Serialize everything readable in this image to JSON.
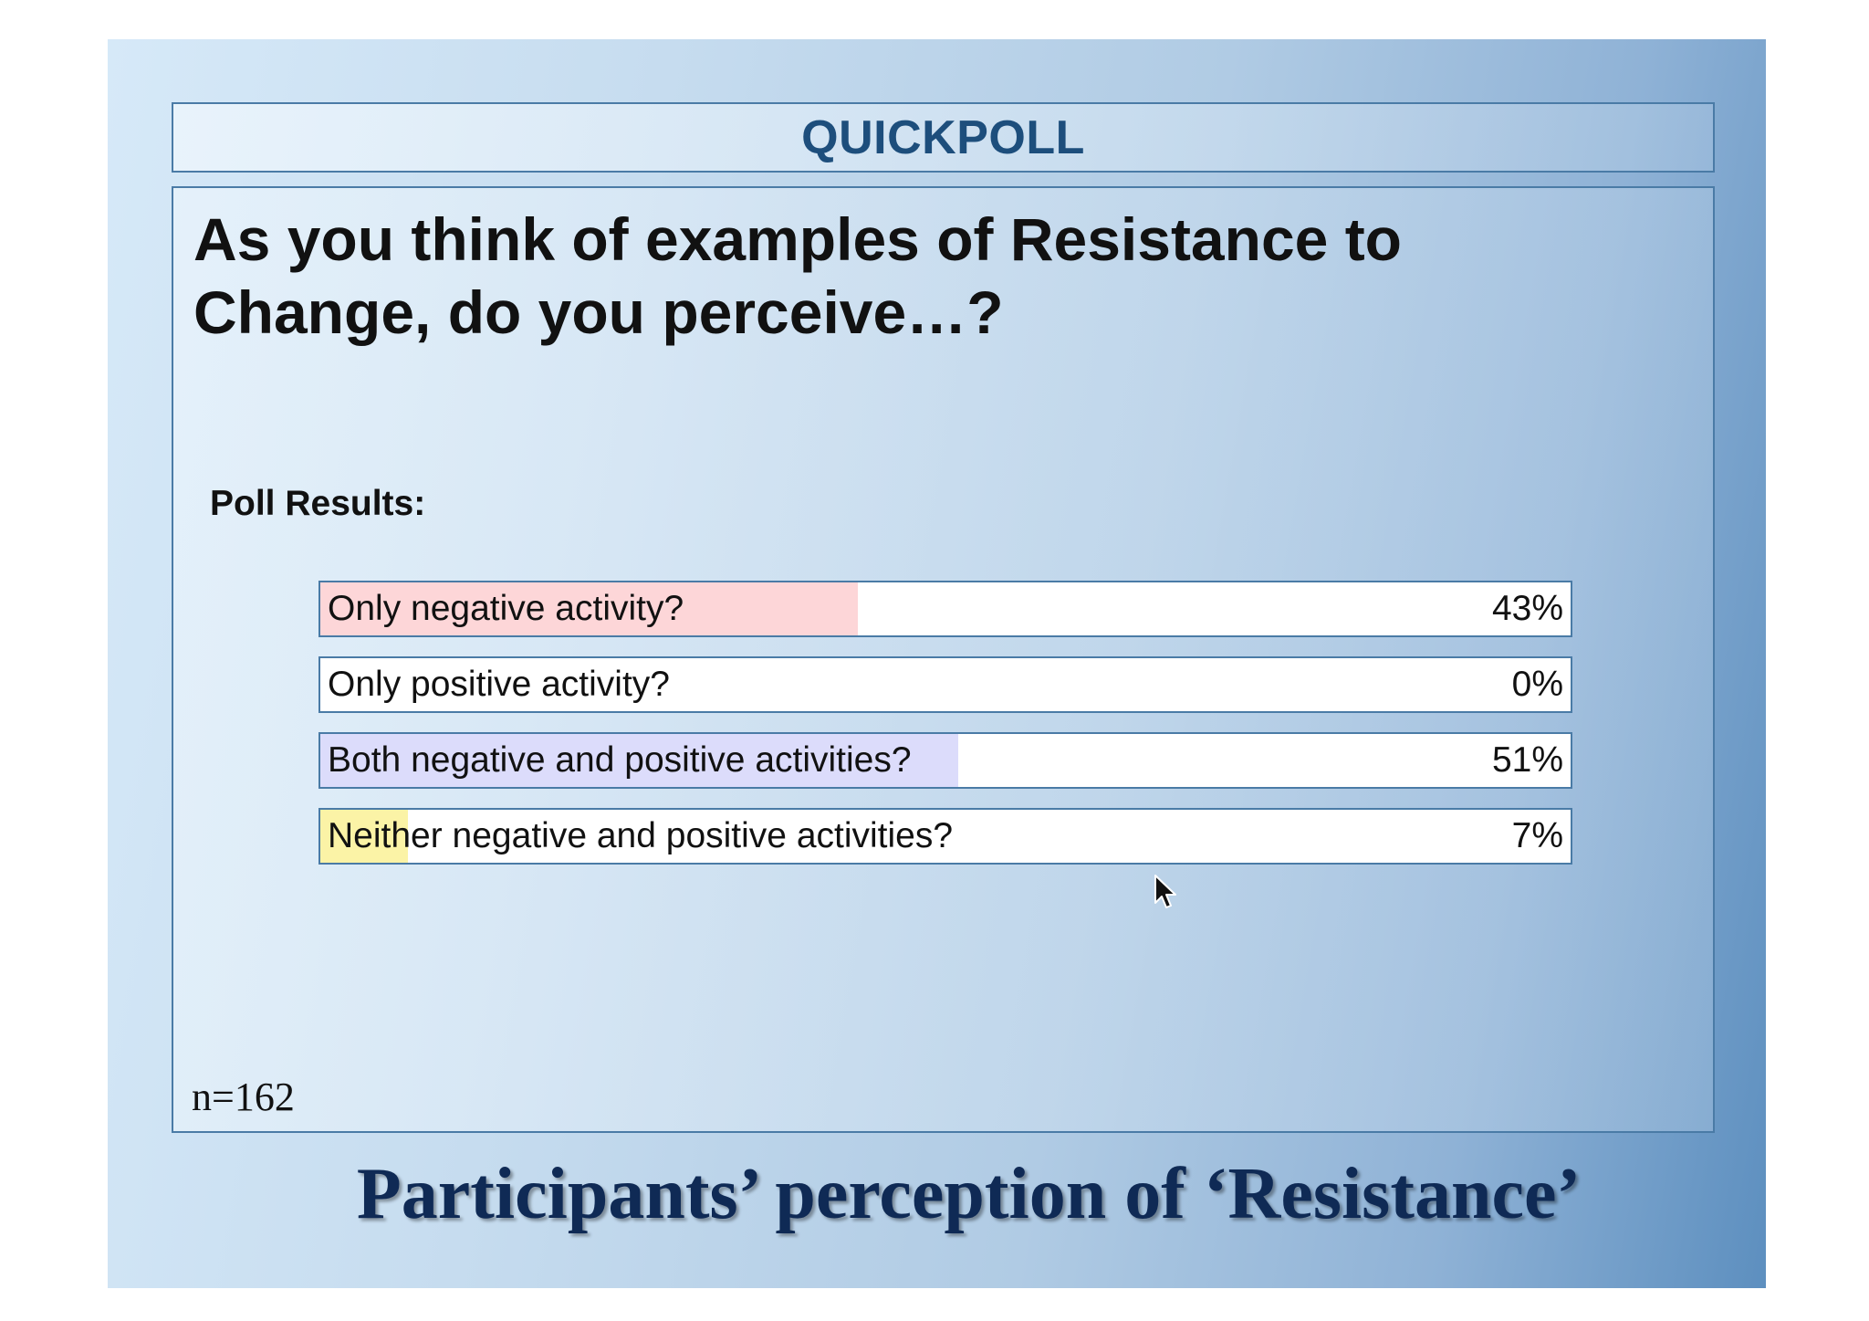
{
  "header": {
    "title": "QUICKPOLL"
  },
  "question": "As you think of examples of Resistance to Change, do you perceive…?",
  "results_label": "Poll Results:",
  "sample_size": "n=162",
  "caption": "Participants’ perception of ‘Resistance’",
  "chart_data": {
    "type": "bar",
    "orientation": "horizontal",
    "categories": [
      "Only negative activity?",
      "Only positive activity?",
      "Both negative and positive activities?",
      "Neither negative and positive activities?"
    ],
    "values": [
      43,
      0,
      51,
      7
    ],
    "value_labels": [
      "43%",
      "0%",
      "51%",
      "7%"
    ],
    "colors": [
      "#fdd6d8",
      "#ffffff",
      "#dcdcfb",
      "#fbf3a6"
    ],
    "xlim": [
      0,
      100
    ]
  },
  "colors": {
    "frame_border": "#4a7ba6",
    "title_text": "#1d4e7c",
    "caption_text": "#0f2a55"
  },
  "cursor": {
    "icon": "mouse-pointer-icon"
  }
}
